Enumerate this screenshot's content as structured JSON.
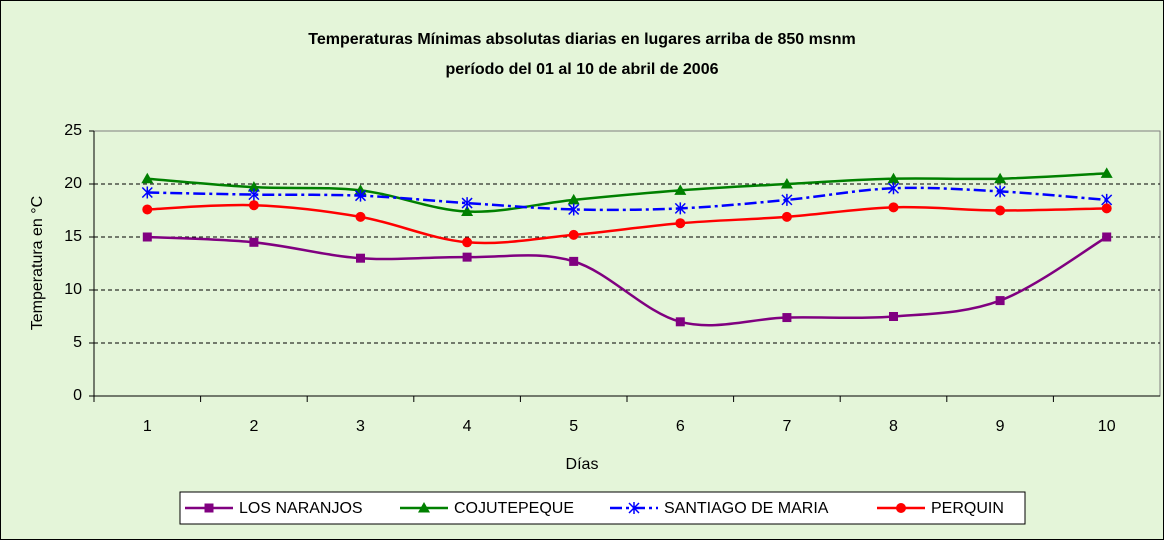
{
  "chart_data": {
    "type": "line",
    "title": "Temperaturas Mínimas absolutas diarias en lugares arriba de 850 msnm",
    "subtitle": "período del 01 al 10 de abril de 2006",
    "x_label": "Días",
    "y_label": "Temperatura en °C",
    "categories": [
      "1",
      "2",
      "3",
      "4",
      "5",
      "6",
      "7",
      "8",
      "9",
      "10"
    ],
    "series": [
      {
        "name": "LOS NARANJOS",
        "color": "#800080",
        "marker": "square",
        "dash": "solid",
        "values": [
          15,
          14.5,
          13,
          13.1,
          12.7,
          7,
          7.4,
          7.5,
          9,
          15
        ]
      },
      {
        "name": "COJUTEPEQUE",
        "color": "#008000",
        "marker": "triangle",
        "dash": "solid",
        "values": [
          20.5,
          19.7,
          19.4,
          17.4,
          18.5,
          19.4,
          20,
          20.5,
          20.5,
          21
        ]
      },
      {
        "name": "SANTIAGO DE MARIA",
        "color": "#0000ff",
        "marker": "star",
        "dash": "dashdot",
        "values": [
          19.2,
          19,
          18.9,
          18.2,
          17.6,
          17.7,
          18.5,
          19.6,
          19.3,
          18.5
        ]
      },
      {
        "name": "PERQUIN",
        "color": "#ff0000",
        "marker": "circle",
        "dash": "solid",
        "values": [
          17.6,
          18,
          16.9,
          14.5,
          15.2,
          16.3,
          16.9,
          17.8,
          17.5,
          17.7
        ]
      }
    ],
    "ylim": [
      0,
      25
    ],
    "yticks": [
      0,
      5,
      10,
      15,
      20,
      25
    ],
    "grid": true,
    "legend": "bottom",
    "smooth": true
  }
}
